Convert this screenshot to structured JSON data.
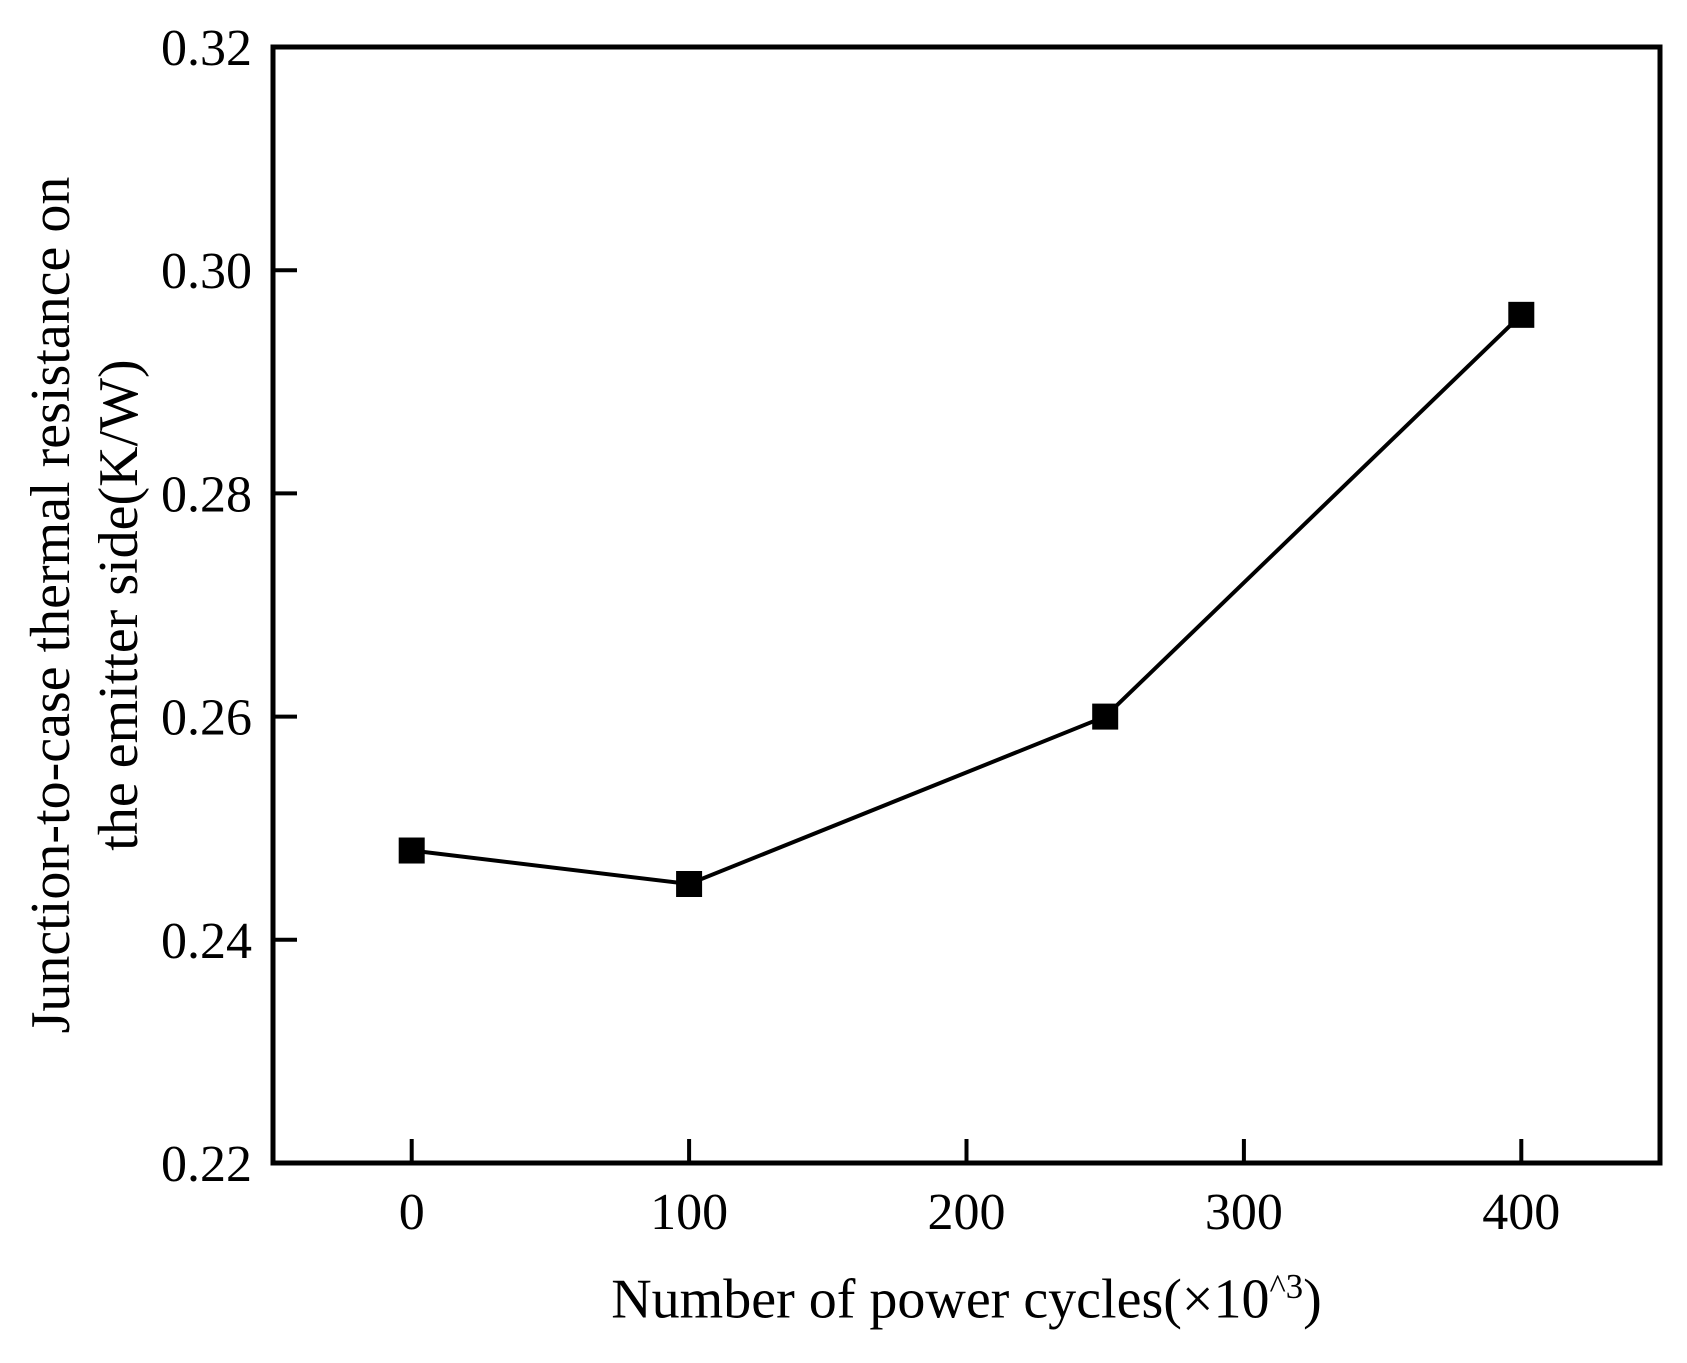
{
  "figure": {
    "background": "#ffffff",
    "ink": "#000000"
  },
  "chart_data": {
    "type": "line",
    "xlabel": "Number of power cycles(×10^3)",
    "xlabel_parts": {
      "pre": "Number of power cycles(×10",
      "sup": "^3",
      "post": ")"
    },
    "ylabel": "Junction-to-case thermal resistance on the emitter side(K/W)",
    "ylabel_lines": [
      "Junction-to-case thermal resistance on",
      "the emitter side(K/W)"
    ],
    "xlim": [
      -50,
      450
    ],
    "ylim": [
      0.22,
      0.32
    ],
    "xticks": [
      0,
      100,
      200,
      300,
      400
    ],
    "xtick_labels": [
      "0",
      "100",
      "200",
      "300",
      "400"
    ],
    "yticks": [
      0.22,
      0.24,
      0.26,
      0.28,
      0.3,
      0.32
    ],
    "ytick_labels": [
      "0.22",
      "0.24",
      "0.26",
      "0.28",
      "0.30",
      "0.32"
    ],
    "grid": false,
    "legend": "none",
    "ink": "#000000",
    "series": [
      {
        "name": "junction-to-case-thermal-resistance-emitter-side",
        "marker": "filled-square",
        "line_color": "#000000",
        "marker_color": "#000000",
        "x": [
          0,
          100,
          250,
          400
        ],
        "y": [
          0.248,
          0.245,
          0.26,
          0.296
        ]
      }
    ]
  }
}
